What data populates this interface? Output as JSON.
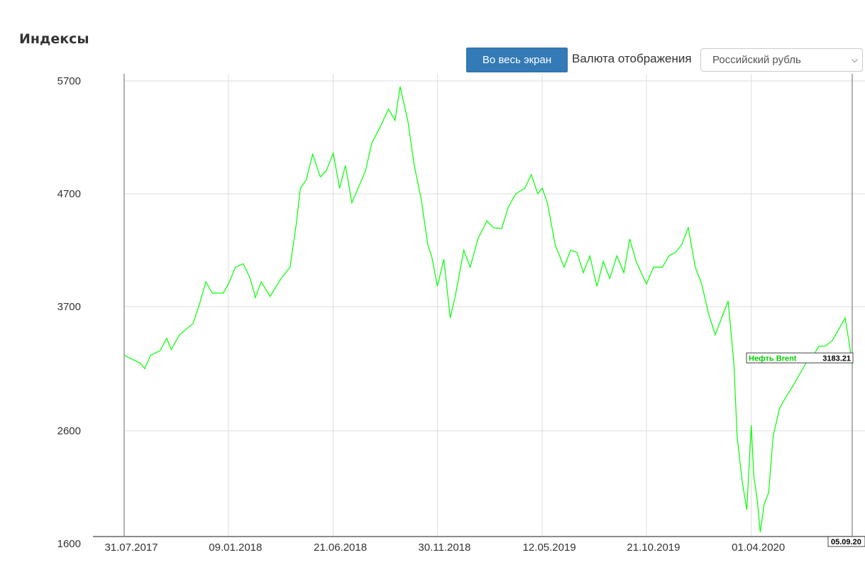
{
  "header": {
    "title": "Индексы",
    "fullscreen_label": "Во весь экран",
    "currency_label": "Валюта отображения",
    "currency_value": "Российский рубль"
  },
  "colors": {
    "series": "#00ff00",
    "button": "#337ab7",
    "grid": "#dddddd"
  },
  "chart_data": {
    "type": "line",
    "title": "",
    "xlabel": "",
    "ylabel": "",
    "ylim": [
      1600,
      5700
    ],
    "yticks": [
      1600,
      2600,
      3700,
      4700,
      5700
    ],
    "xticks": [
      "31.07.2017",
      "09.01.2018",
      "21.06.2018",
      "30.11.2018",
      "12.05.2019",
      "21.10.2019",
      "01.04.2020"
    ],
    "xlim": [
      "31.07.2017",
      "05.09.2020"
    ],
    "grid": true,
    "last_date_label": "05.09.20",
    "series": [
      {
        "name": "Нефть Brent",
        "last_value": "3183.21",
        "x": [
          "31.07.2017",
          "10.08.2017",
          "25.08.2017",
          "01.09.2017",
          "10.09.2017",
          "25.09.2017",
          "05.10.2017",
          "12.10.2017",
          "25.10.2017",
          "15.11.2017",
          "25.11.2017",
          "05.12.2017",
          "15.12.2017",
          "01.01.2018",
          "09.01.2018",
          "20.01.2018",
          "01.02.2018",
          "12.02.2018",
          "20.02.2018",
          "01.03.2018",
          "15.03.2018",
          "01.04.2018",
          "15.04.2018",
          "25.04.2018",
          "01.05.2018",
          "10.05.2018",
          "20.05.2018",
          "01.06.2018",
          "10.06.2018",
          "21.06.2018",
          "01.07.2018",
          "10.07.2018",
          "20.07.2018",
          "01.08.2018",
          "10.08.2018",
          "20.08.2018",
          "01.09.2018",
          "15.09.2018",
          "25.09.2018",
          "03.10.2018",
          "15.10.2018",
          "25.10.2018",
          "05.11.2018",
          "15.11.2018",
          "21.11.2018",
          "30.11.2018",
          "10.12.2018",
          "20.12.2018",
          "28.12.2018",
          "10.01.2019",
          "20.01.2019",
          "01.02.2019",
          "15.02.2019",
          "25.02.2019",
          "10.03.2019",
          "20.03.2019",
          "01.04.2019",
          "15.04.2019",
          "25.04.2019",
          "05.05.2019",
          "12.05.2019",
          "20.05.2019",
          "01.06.2019",
          "15.06.2019",
          "25.06.2019",
          "05.07.2019",
          "15.07.2019",
          "25.07.2019",
          "05.08.2019",
          "15.08.2019",
          "25.08.2019",
          "05.09.2019",
          "16.09.2019",
          "25.09.2019",
          "05.10.2019",
          "21.10.2019",
          "01.11.2019",
          "15.11.2019",
          "25.11.2019",
          "05.12.2019",
          "15.12.2019",
          "25.12.2019",
          "05.01.2020",
          "15.01.2020",
          "25.01.2020",
          "05.02.2020",
          "15.02.2020",
          "25.02.2020",
          "05.03.2020",
          "10.03.2020",
          "18.03.2020",
          "25.03.2020",
          "01.04.2020",
          "05.04.2020",
          "10.04.2020",
          "15.04.2020",
          "21.04.2020",
          "28.04.2020",
          "05.05.2020",
          "15.05.2020",
          "25.05.2020",
          "05.06.2020",
          "15.06.2020",
          "25.06.2020",
          "05.07.2020",
          "15.07.2020",
          "25.07.2020",
          "05.08.2020",
          "15.08.2020",
          "25.08.2020",
          "01.09.2020",
          "05.09.2020"
        ],
        "values": [
          3270,
          3240,
          3200,
          3150,
          3270,
          3310,
          3420,
          3320,
          3450,
          3550,
          3720,
          3920,
          3820,
          3820,
          3900,
          4050,
          4080,
          3950,
          3780,
          3920,
          3790,
          3950,
          4050,
          4450,
          4750,
          4820,
          5050,
          4850,
          4900,
          5060,
          4750,
          4950,
          4620,
          4780,
          4900,
          5150,
          5280,
          5450,
          5350,
          5650,
          5350,
          4950,
          4650,
          4250,
          4150,
          3880,
          4120,
          3600,
          3800,
          4200,
          4050,
          4300,
          4460,
          4400,
          4390,
          4580,
          4700,
          4750,
          4870,
          4700,
          4750,
          4620,
          4250,
          4050,
          4200,
          4180,
          4000,
          4150,
          3880,
          4100,
          3950,
          4150,
          4000,
          4300,
          4100,
          3900,
          4050,
          4050,
          4150,
          4180,
          4250,
          4400,
          4050,
          3900,
          3650,
          3450,
          3600,
          3750,
          3200,
          2550,
          2150,
          1900,
          2650,
          2200,
          2000,
          1700,
          1950,
          2050,
          2550,
          2800,
          2900,
          3000,
          3100,
          3200,
          3250,
          3350,
          3350,
          3400,
          3500,
          3600,
          3350,
          3183
        ]
      }
    ]
  }
}
